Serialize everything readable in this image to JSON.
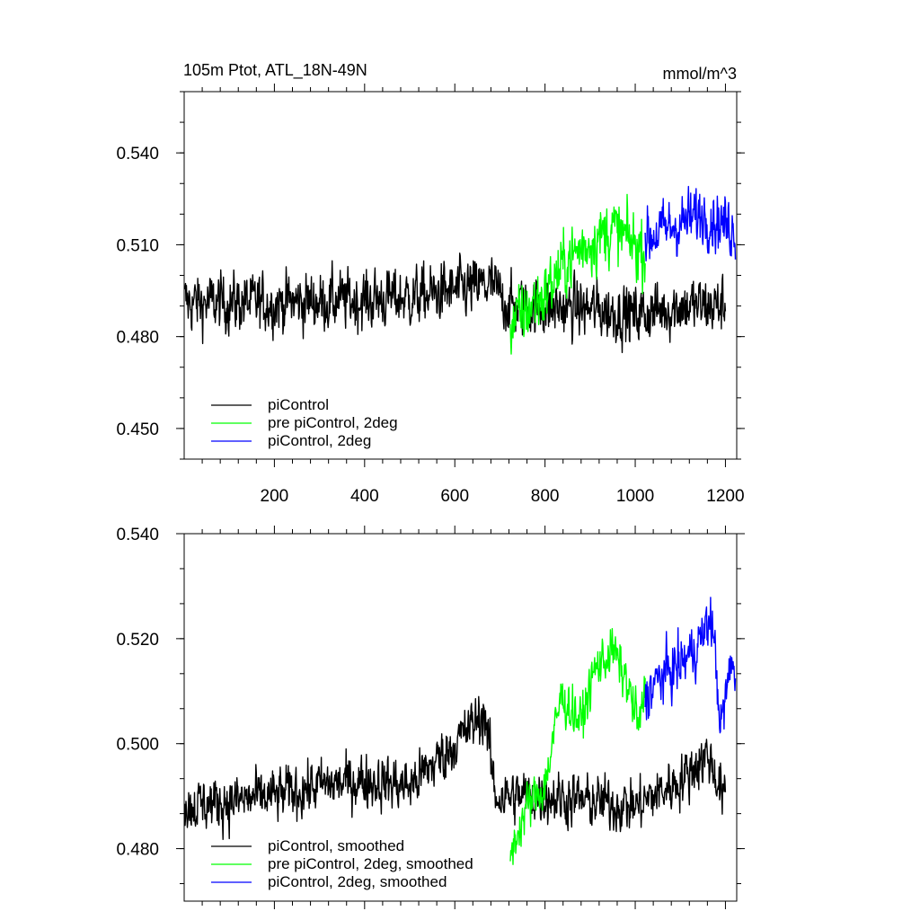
{
  "chart_data": [
    {
      "type": "line",
      "title_left": "105m Ptot, ATL_18N-49N",
      "title_right": "mmol/m^3",
      "xlabel": "",
      "ylabel": "",
      "xlim": [
        0,
        1225
      ],
      "ylim": [
        0.44,
        0.56
      ],
      "x_ticks": [
        200,
        400,
        600,
        800,
        1000,
        1200
      ],
      "x_tick_labels": [
        "200",
        "400",
        "600",
        "800",
        "1000",
        "1200"
      ],
      "y_ticks": [
        0.45,
        0.48,
        0.51,
        0.54
      ],
      "y_tick_labels": [
        "0.450",
        "0.480",
        "0.510",
        "0.540"
      ],
      "legend": [
        "piControl",
        "pre piControl, 2deg",
        "piControl, 2deg"
      ],
      "series": [
        {
          "name": "piControl",
          "color": "#000000",
          "x_start": 1,
          "x_end": 1200,
          "noise": 0.0085,
          "anchors": [
            [
              1,
              0.491
            ],
            [
              200,
              0.491
            ],
            [
              400,
              0.492
            ],
            [
              520,
              0.493
            ],
            [
              680,
              0.497
            ],
            [
              720,
              0.49
            ],
            [
              900,
              0.489
            ],
            [
              1000,
              0.487
            ],
            [
              1100,
              0.49
            ],
            [
              1200,
              0.49
            ]
          ]
        },
        {
          "name": "pre piControl, 2deg",
          "color": "#00ff00",
          "x_start": 723,
          "x_end": 1022,
          "noise": 0.0095,
          "anchors": [
            [
              723,
              0.484
            ],
            [
              800,
              0.494
            ],
            [
              850,
              0.505
            ],
            [
              900,
              0.511
            ],
            [
              950,
              0.515
            ],
            [
              1000,
              0.51
            ],
            [
              1022,
              0.508
            ]
          ]
        },
        {
          "name": "piControl, 2deg",
          "color": "#0000ff",
          "x_start": 1022,
          "x_end": 1222,
          "noise": 0.0085,
          "anchors": [
            [
              1022,
              0.512
            ],
            [
              1100,
              0.517
            ],
            [
              1150,
              0.52
            ],
            [
              1222,
              0.515
            ]
          ]
        }
      ]
    },
    {
      "type": "line",
      "xlabel": "",
      "ylabel": "",
      "xlim": [
        0,
        1225
      ],
      "ylim": [
        0.47,
        0.54
      ],
      "y_ticks": [
        0.48,
        0.5,
        0.52,
        0.54
      ],
      "y_tick_labels": [
        "0.480",
        "0.500",
        "0.520",
        "0.540"
      ],
      "legend": [
        "piControl, smoothed",
        "pre piControl, 2deg, smoothed",
        "piControl, 2deg, smoothed"
      ],
      "series": [
        {
          "name": "piControl, smoothed",
          "color": "#000000",
          "x_start": 1,
          "x_end": 1200,
          "noise": 0.0045,
          "anchors": [
            [
              1,
              0.488
            ],
            [
              100,
              0.489
            ],
            [
              200,
              0.49
            ],
            [
              300,
              0.492
            ],
            [
              400,
              0.493
            ],
            [
              500,
              0.492
            ],
            [
              600,
              0.5
            ],
            [
              666,
              0.506
            ],
            [
              690,
              0.49
            ],
            [
              800,
              0.49
            ],
            [
              900,
              0.489
            ],
            [
              1000,
              0.488
            ],
            [
              1100,
              0.493
            ],
            [
              1160,
              0.498
            ],
            [
              1200,
              0.489
            ]
          ]
        },
        {
          "name": "pre piControl, 2deg, smoothed",
          "color": "#00ff00",
          "x_start": 723,
          "x_end": 1022,
          "noise": 0.004,
          "anchors": [
            [
              723,
              0.479
            ],
            [
              760,
              0.488
            ],
            [
              800,
              0.492
            ],
            [
              835,
              0.509
            ],
            [
              880,
              0.504
            ],
            [
              910,
              0.514
            ],
            [
              950,
              0.518
            ],
            [
              980,
              0.512
            ],
            [
              1010,
              0.503
            ],
            [
              1022,
              0.511
            ]
          ]
        },
        {
          "name": "piControl, 2deg, smoothed",
          "color": "#0000ff",
          "x_start": 1022,
          "x_end": 1222,
          "noise": 0.0045,
          "anchors": [
            [
              1022,
              0.509
            ],
            [
              1060,
              0.513
            ],
            [
              1100,
              0.515
            ],
            [
              1140,
              0.519
            ],
            [
              1170,
              0.524
            ],
            [
              1190,
              0.503
            ],
            [
              1210,
              0.514
            ],
            [
              1222,
              0.515
            ]
          ]
        }
      ]
    }
  ]
}
